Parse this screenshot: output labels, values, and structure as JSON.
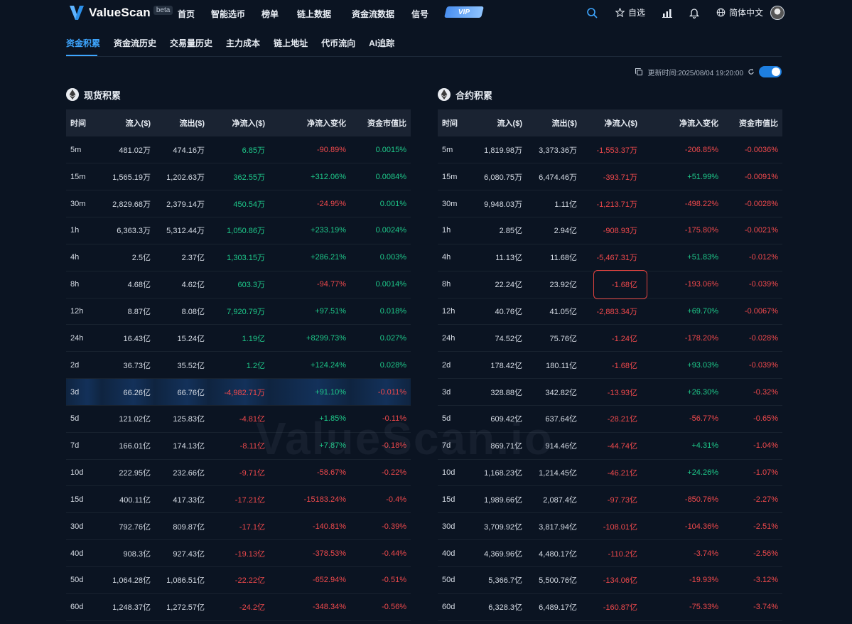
{
  "app": {
    "name": "ValueScan",
    "badge": "beta",
    "watermark": "ValueScan.io"
  },
  "nav": [
    "首页",
    "智能选币",
    "榜单",
    "链上数据",
    "资金流数据",
    "信号"
  ],
  "vip_label": "VIP",
  "header": {
    "favorites": "自选",
    "language": "简体中文"
  },
  "tabs": [
    "资金积累",
    "资金流历史",
    "交易量历史",
    "主力成本",
    "链上地址",
    "代币流向",
    "AI追踪"
  ],
  "active_tab": 0,
  "update_time": "更新时间:2025/08/04 19:20:00",
  "columns": [
    "时间",
    "流入($)",
    "流出($)",
    "净流入($)",
    "净流入变化",
    "资金市值比"
  ],
  "spot": {
    "title": "现货积累",
    "rows": [
      [
        "5m",
        "481.02万",
        "474.16万",
        "6.85万",
        "-90.89%",
        "0.0015%"
      ],
      [
        "15m",
        "1,565.19万",
        "1,202.63万",
        "362.55万",
        "+312.06%",
        "0.0084%"
      ],
      [
        "30m",
        "2,829.68万",
        "2,379.14万",
        "450.54万",
        "-24.95%",
        "0.001%"
      ],
      [
        "1h",
        "6,363.3万",
        "5,312.44万",
        "1,050.86万",
        "+233.19%",
        "0.0024%"
      ],
      [
        "4h",
        "2.5亿",
        "2.37亿",
        "1,303.15万",
        "+286.21%",
        "0.003%"
      ],
      [
        "8h",
        "4.68亿",
        "4.62亿",
        "603.3万",
        "-94.77%",
        "0.0014%"
      ],
      [
        "12h",
        "8.87亿",
        "8.08亿",
        "7,920.79万",
        "+97.51%",
        "0.018%"
      ],
      [
        "24h",
        "16.43亿",
        "15.24亿",
        "1.19亿",
        "+8299.73%",
        "0.027%"
      ],
      [
        "2d",
        "36.73亿",
        "35.52亿",
        "1.2亿",
        "+124.24%",
        "0.028%"
      ],
      [
        "3d",
        "66.26亿",
        "66.76亿",
        "-4,982.71万",
        "+91.10%",
        "-0.011%"
      ],
      [
        "5d",
        "121.02亿",
        "125.83亿",
        "-4.81亿",
        "+1.85%",
        "-0.11%"
      ],
      [
        "7d",
        "166.01亿",
        "174.13亿",
        "-8.11亿",
        "+7.87%",
        "-0.18%"
      ],
      [
        "10d",
        "222.95亿",
        "232.66亿",
        "-9.71亿",
        "-58.67%",
        "-0.22%"
      ],
      [
        "15d",
        "400.11亿",
        "417.33亿",
        "-17.21亿",
        "-15183.24%",
        "-0.4%"
      ],
      [
        "30d",
        "792.76亿",
        "809.87亿",
        "-17.1亿",
        "-140.81%",
        "-0.39%"
      ],
      [
        "40d",
        "908.3亿",
        "927.43亿",
        "-19.13亿",
        "-378.53%",
        "-0.44%"
      ],
      [
        "50d",
        "1,064.28亿",
        "1,086.51亿",
        "-22.22亿",
        "-652.94%",
        "-0.51%"
      ],
      [
        "60d",
        "1,248.37亿",
        "1,272.57亿",
        "-24.2亿",
        "-348.34%",
        "-0.56%"
      ]
    ]
  },
  "futures": {
    "title": "合约积累",
    "rows": [
      [
        "5m",
        "1,819.98万",
        "3,373.36万",
        "-1,553.37万",
        "-206.85%",
        "-0.0036%"
      ],
      [
        "15m",
        "6,080.75万",
        "6,474.46万",
        "-393.71万",
        "+51.99%",
        "-0.0091%"
      ],
      [
        "30m",
        "9,948.03万",
        "1.11亿",
        "-1,213.71万",
        "-498.22%",
        "-0.0028%"
      ],
      [
        "1h",
        "2.85亿",
        "2.94亿",
        "-908.93万",
        "-175.80%",
        "-0.0021%"
      ],
      [
        "4h",
        "11.13亿",
        "11.68亿",
        "-5,467.31万",
        "+51.83%",
        "-0.012%"
      ],
      [
        "8h",
        "22.24亿",
        "23.92亿",
        "-1.68亿",
        "-193.06%",
        "-0.039%"
      ],
      [
        "12h",
        "40.76亿",
        "41.05亿",
        "-2,883.34万",
        "+69.70%",
        "-0.0067%"
      ],
      [
        "24h",
        "74.52亿",
        "75.76亿",
        "-1.24亿",
        "-178.20%",
        "-0.028%"
      ],
      [
        "2d",
        "178.42亿",
        "180.11亿",
        "-1.68亿",
        "+93.03%",
        "-0.039%"
      ],
      [
        "3d",
        "328.88亿",
        "342.82亿",
        "-13.93亿",
        "+26.30%",
        "-0.32%"
      ],
      [
        "5d",
        "609.42亿",
        "637.64亿",
        "-28.21亿",
        "-56.77%",
        "-0.65%"
      ],
      [
        "7d",
        "869.71亿",
        "914.46亿",
        "-44.74亿",
        "+4.31%",
        "-1.04%"
      ],
      [
        "10d",
        "1,168.23亿",
        "1,214.45亿",
        "-46.21亿",
        "+24.26%",
        "-1.07%"
      ],
      [
        "15d",
        "1,989.66亿",
        "2,087.4亿",
        "-97.73亿",
        "-850.76%",
        "-2.27%"
      ],
      [
        "30d",
        "3,709.92亿",
        "3,817.94亿",
        "-108.01亿",
        "-104.36%",
        "-2.51%"
      ],
      [
        "40d",
        "4,369.96亿",
        "4,480.17亿",
        "-110.2亿",
        "-3.74%",
        "-2.56%"
      ],
      [
        "50d",
        "5,366.7亿",
        "5,500.76亿",
        "-134.06亿",
        "-19.93%",
        "-3.12%"
      ],
      [
        "60d",
        "6,328.3亿",
        "6,489.17亿",
        "-160.87亿",
        "-75.33%",
        "-3.74%"
      ]
    ]
  },
  "highlighted_row": "3d",
  "colors": {
    "positive": "#1ec98a",
    "negative": "#f0494c",
    "accent": "#3ea6ff",
    "background": "#0b1422"
  }
}
